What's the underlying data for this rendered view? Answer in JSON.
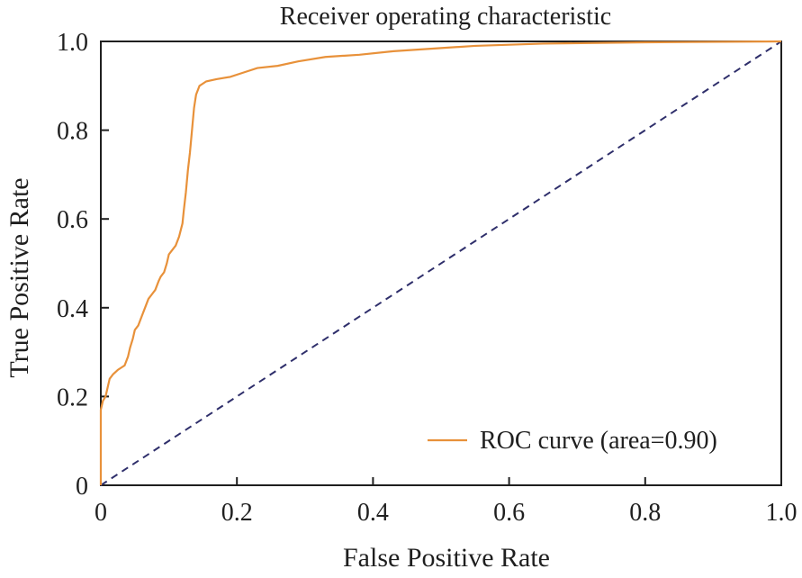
{
  "chart_data": {
    "type": "line",
    "title": "Receiver operating characteristic",
    "xlabel": "False Positive Rate",
    "ylabel": "True Positive Rate",
    "xlim": [
      0,
      1
    ],
    "ylim": [
      0,
      1
    ],
    "x_ticks": [
      {
        "value": 0,
        "label": "0"
      },
      {
        "value": 0.2,
        "label": "0.2"
      },
      {
        "value": 0.4,
        "label": "0.4"
      },
      {
        "value": 0.6,
        "label": "0.6"
      },
      {
        "value": 0.8,
        "label": "0.8"
      },
      {
        "value": 1.0,
        "label": "1.0"
      }
    ],
    "y_ticks": [
      {
        "value": 0,
        "label": "0"
      },
      {
        "value": 0.2,
        "label": "0.2"
      },
      {
        "value": 0.4,
        "label": "0.4"
      },
      {
        "value": 0.6,
        "label": "0.6"
      },
      {
        "value": 0.8,
        "label": "0.8"
      },
      {
        "value": 1.0,
        "label": "1.0"
      }
    ],
    "grid": false,
    "legend_position": "bottom-right",
    "series": [
      {
        "name": "ROC curve (area=0.90)",
        "color": "#E8913A",
        "style": "solid",
        "points": [
          [
            0,
            0
          ],
          [
            0,
            0.13
          ],
          [
            0,
            0.17
          ],
          [
            0.003,
            0.19
          ],
          [
            0.007,
            0.2
          ],
          [
            0.01,
            0.22
          ],
          [
            0.013,
            0.24
          ],
          [
            0.018,
            0.25
          ],
          [
            0.025,
            0.26
          ],
          [
            0.03,
            0.265
          ],
          [
            0.035,
            0.27
          ],
          [
            0.04,
            0.29
          ],
          [
            0.043,
            0.31
          ],
          [
            0.047,
            0.33
          ],
          [
            0.05,
            0.35
          ],
          [
            0.055,
            0.36
          ],
          [
            0.06,
            0.38
          ],
          [
            0.065,
            0.4
          ],
          [
            0.07,
            0.42
          ],
          [
            0.075,
            0.43
          ],
          [
            0.08,
            0.44
          ],
          [
            0.085,
            0.46
          ],
          [
            0.088,
            0.47
          ],
          [
            0.093,
            0.48
          ],
          [
            0.097,
            0.5
          ],
          [
            0.1,
            0.52
          ],
          [
            0.105,
            0.53
          ],
          [
            0.11,
            0.54
          ],
          [
            0.115,
            0.56
          ],
          [
            0.12,
            0.59
          ],
          [
            0.122,
            0.62
          ],
          [
            0.125,
            0.66
          ],
          [
            0.128,
            0.71
          ],
          [
            0.131,
            0.75
          ],
          [
            0.134,
            0.8
          ],
          [
            0.137,
            0.85
          ],
          [
            0.14,
            0.88
          ],
          [
            0.145,
            0.9
          ],
          [
            0.155,
            0.91
          ],
          [
            0.17,
            0.915
          ],
          [
            0.19,
            0.92
          ],
          [
            0.21,
            0.93
          ],
          [
            0.23,
            0.94
          ],
          [
            0.26,
            0.945
          ],
          [
            0.29,
            0.955
          ],
          [
            0.33,
            0.965
          ],
          [
            0.38,
            0.97
          ],
          [
            0.43,
            0.978
          ],
          [
            0.5,
            0.985
          ],
          [
            0.55,
            0.99
          ],
          [
            0.65,
            0.995
          ],
          [
            0.8,
            0.998
          ],
          [
            1.0,
            1.0
          ]
        ]
      },
      {
        "color": "#2F2F6B",
        "style": "dashed",
        "points": [
          [
            0,
            0
          ],
          [
            1,
            1
          ]
        ]
      }
    ]
  }
}
